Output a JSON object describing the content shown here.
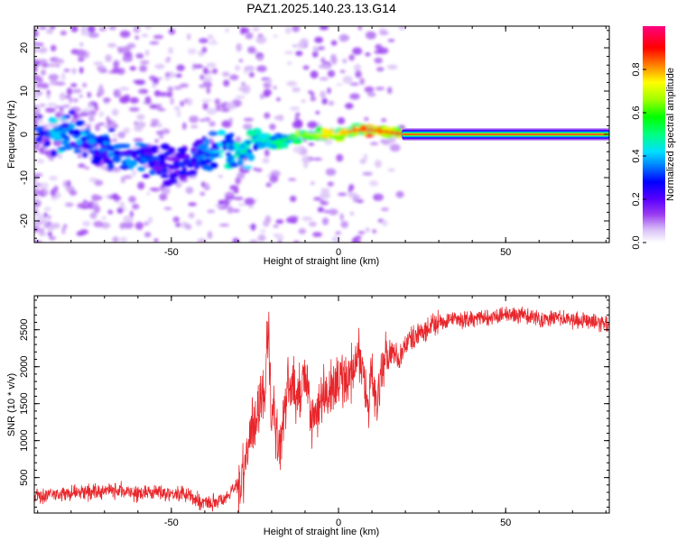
{
  "title": "PAZ1.2025.140.23.13.G14",
  "colors": {
    "snr_line": "#e8262b",
    "frame": "#000000"
  },
  "chart_data": [
    {
      "type": "heatmap",
      "xlabel": "Height of straight line (km)",
      "ylabel": "Frequency (Hz)",
      "xlim": [
        -91,
        81
      ],
      "ylim": [
        -25,
        25
      ],
      "xticks": [
        -50,
        0,
        50
      ],
      "yticks": [
        -20,
        -10,
        0,
        10,
        20
      ],
      "colorbar": {
        "label": "Normalized spectral amplitude",
        "ticks": [
          0.0,
          0.2,
          0.4,
          0.6,
          0.8
        ],
        "range": [
          0,
          1
        ],
        "colormap": [
          "#ffffff",
          "#d7b8f7",
          "#9a3cf0",
          "#5a00ff",
          "#0000ff",
          "#0088ff",
          "#00e0ff",
          "#00ff80",
          "#00ff00",
          "#a0ff00",
          "#ffff00",
          "#ff8000",
          "#ff0000",
          "#ff0080"
        ]
      },
      "ridge": [
        {
          "x": -90,
          "f": 1,
          "a": 0.3
        },
        {
          "x": -85,
          "f": 0,
          "a": 0.45
        },
        {
          "x": -80,
          "f": 0,
          "a": 0.35
        },
        {
          "x": -75,
          "f": -3,
          "a": 0.4
        },
        {
          "x": -70,
          "f": -3,
          "a": 0.35
        },
        {
          "x": -65,
          "f": -4,
          "a": 0.4
        },
        {
          "x": -60,
          "f": -5,
          "a": 0.35
        },
        {
          "x": -55,
          "f": -6,
          "a": 0.3
        },
        {
          "x": -50,
          "f": -7,
          "a": 0.28
        },
        {
          "x": -45,
          "f": -5,
          "a": 0.3
        },
        {
          "x": -40,
          "f": -4,
          "a": 0.35
        },
        {
          "x": -35,
          "f": -4,
          "a": 0.45
        },
        {
          "x": -30,
          "f": -5,
          "a": 0.5
        },
        {
          "x": -25,
          "f": -1,
          "a": 0.45
        },
        {
          "x": -20,
          "f": -2,
          "a": 0.5
        },
        {
          "x": -15,
          "f": -1,
          "a": 0.6
        },
        {
          "x": -10,
          "f": 0,
          "a": 0.65
        },
        {
          "x": -5,
          "f": 0,
          "a": 0.7
        },
        {
          "x": 0,
          "f": 0,
          "a": 0.75
        },
        {
          "x": 5,
          "f": 1,
          "a": 0.85
        },
        {
          "x": 10,
          "f": 1,
          "a": 0.85
        },
        {
          "x": 15,
          "f": 0.5,
          "a": 0.85
        },
        {
          "x": 20,
          "f": 0,
          "a": 0.92
        },
        {
          "x": 30,
          "f": 0,
          "a": 0.97
        },
        {
          "x": 50,
          "f": 0,
          "a": 0.98
        },
        {
          "x": 81,
          "f": 0,
          "a": 0.98
        }
      ]
    },
    {
      "type": "line",
      "xlabel": "Height of straight line (km)",
      "ylabel": "SNR (10 * v/v)",
      "xlim": [
        -91,
        81
      ],
      "ylim": [
        20,
        2960
      ],
      "xticks": [
        -50,
        0,
        50
      ],
      "yticks": [
        500,
        1000,
        1500,
        2000,
        2500
      ],
      "series": [
        {
          "x": [
            -91,
            -85,
            -80,
            -75,
            -70,
            -65,
            -60,
            -55,
            -50,
            -45,
            -40,
            -35,
            -32,
            -30,
            -28,
            -26,
            -24,
            -22,
            -21,
            -20,
            -19,
            -18,
            -16,
            -14,
            -12,
            -10,
            -8,
            -6,
            -5,
            -3,
            -1,
            0,
            2,
            4,
            5,
            6,
            7,
            9,
            10,
            11,
            12,
            14,
            16,
            18,
            20,
            22,
            25,
            28,
            31,
            35,
            40,
            45,
            50,
            55,
            60,
            65,
            70,
            75,
            81
          ],
          "y": [
            250,
            270,
            290,
            300,
            310,
            330,
            280,
            320,
            290,
            260,
            150,
            200,
            300,
            400,
            700,
            1100,
            1500,
            1650,
            2500,
            1300,
            1400,
            700,
            1500,
            1750,
            1600,
            1900,
            1200,
            1450,
            1600,
            1650,
            1700,
            1780,
            1850,
            1900,
            2050,
            2150,
            1950,
            1500,
            2000,
            1450,
            1600,
            2150,
            2200,
            2100,
            2300,
            2400,
            2450,
            2550,
            2600,
            2620,
            2650,
            2680,
            2700,
            2690,
            2650,
            2660,
            2630,
            2620,
            2550
          ]
        }
      ]
    }
  ]
}
